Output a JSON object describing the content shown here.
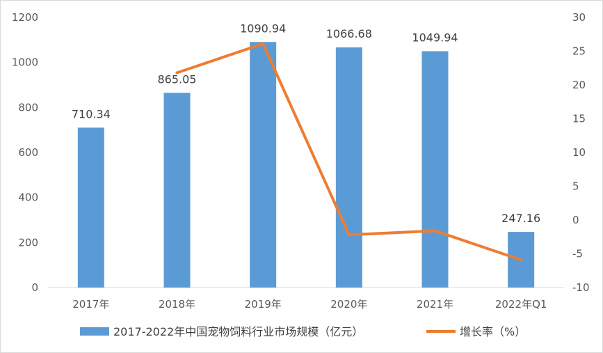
{
  "chart_data": {
    "type": "bar",
    "categories": [
      "2017年",
      "2018年",
      "2019年",
      "2020年",
      "2021年",
      "2022年Q1"
    ],
    "series": [
      {
        "name": "2017-2022年中国宠物饲料行业市场规模（亿元）",
        "kind": "bar",
        "axis": "left",
        "color": "#5B9BD5",
        "values": [
          710.34,
          865.05,
          1090.94,
          1066.68,
          1049.94,
          247.16
        ],
        "labels": [
          "710.34",
          "865.05",
          "1090.94",
          "1066.68",
          "1049.94",
          "247.16"
        ]
      },
      {
        "name": "增长率（%）",
        "kind": "line",
        "axis": "right",
        "color": "#ED7D31",
        "values": [
          null,
          21.8,
          26.1,
          -2.2,
          -1.6,
          -5.9
        ]
      }
    ],
    "y_left": {
      "min": 0,
      "max": 1200,
      "ticks": [
        "0",
        "200",
        "400",
        "600",
        "800",
        "1000",
        "1200"
      ]
    },
    "y_right": {
      "min": -10,
      "max": 30,
      "ticks": [
        "-10",
        "-5",
        "0",
        "5",
        "10",
        "15",
        "20",
        "25",
        "30"
      ]
    },
    "grid": false,
    "legend_position": "bottom"
  }
}
